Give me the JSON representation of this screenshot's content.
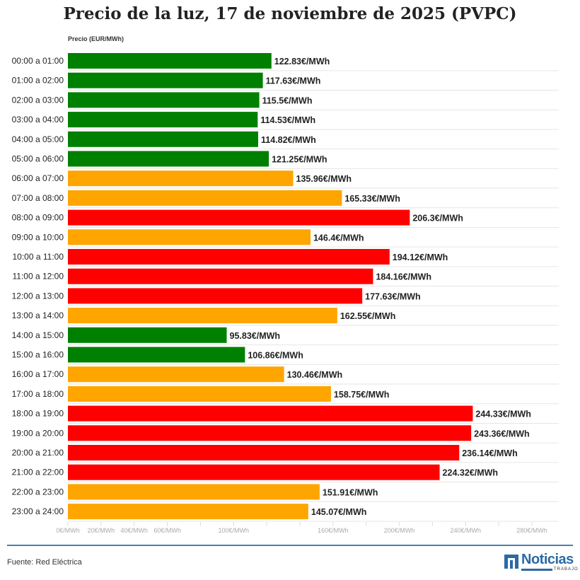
{
  "chart_data": {
    "type": "bar",
    "orientation": "horizontal",
    "title": "Precio de la luz, 17 de noviembre de 2025 (PVPC)",
    "ylabel": "Precio (EUR/MWh)",
    "categories": [
      "00:00 a 01:00",
      "01:00 a 02:00",
      "02:00 a 03:00",
      "03:00 a 04:00",
      "04:00 a 05:00",
      "05:00 a 06:00",
      "06:00 a 07:00",
      "07:00 a 08:00",
      "08:00 a 09:00",
      "09:00 a 10:00",
      "10:00 a 11:00",
      "11:00 a 12:00",
      "12:00 a 13:00",
      "13:00 a 14:00",
      "14:00 a 15:00",
      "15:00 a 16:00",
      "16:00 a 17:00",
      "17:00 a 18:00",
      "18:00 a 19:00",
      "19:00 a 20:00",
      "20:00 a 21:00",
      "21:00 a 22:00",
      "22:00 a 23:00",
      "23:00 a 24:00"
    ],
    "values": [
      122.83,
      117.63,
      115.5,
      114.53,
      114.82,
      121.25,
      135.96,
      165.33,
      206.3,
      146.4,
      194.12,
      184.16,
      177.63,
      162.55,
      95.83,
      106.86,
      130.46,
      158.75,
      244.33,
      243.36,
      236.14,
      224.32,
      151.91,
      145.07
    ],
    "data_labels": [
      "122.83€/MWh",
      "117.63€/MWh",
      "115.5€/MWh",
      "114.53€/MWh",
      "114.82€/MWh",
      "121.25€/MWh",
      "135.96€/MWh",
      "165.33€/MWh",
      "206.3€/MWh",
      "146.4€/MWh",
      "194.12€/MWh",
      "184.16€/MWh",
      "177.63€/MWh",
      "162.55€/MWh",
      "95.83€/MWh",
      "106.86€/MWh",
      "130.46€/MWh",
      "158.75€/MWh",
      "244.33€/MWh",
      "243.36€/MWh",
      "236.14€/MWh",
      "224.32€/MWh",
      "151.91€/MWh",
      "145.07€/MWh"
    ],
    "levels": [
      "low",
      "low",
      "low",
      "low",
      "low",
      "low",
      "mid",
      "mid",
      "high",
      "mid",
      "high",
      "high",
      "high",
      "mid",
      "low",
      "low",
      "mid",
      "mid",
      "high",
      "high",
      "high",
      "high",
      "mid",
      "mid"
    ],
    "colors": {
      "low": "#008000",
      "mid": "#FFA500",
      "high": "#FF0000"
    },
    "xlim": [
      0,
      280
    ],
    "x_ticks": [
      0,
      20,
      40,
      60,
      80,
      100,
      120,
      140,
      160,
      180,
      200,
      220,
      240,
      260,
      280
    ],
    "x_tick_labels": [
      {
        "value": 0,
        "label": "0€/MWh"
      },
      {
        "value": 20,
        "label": "20€/MWh"
      },
      {
        "value": 40,
        "label": "40€/MWh"
      },
      {
        "value": 60,
        "label": "60€/MWh"
      },
      {
        "value": 100,
        "label": "100€/MWh"
      },
      {
        "value": 160,
        "label": "160€/MWh"
      },
      {
        "value": 200,
        "label": "200€/MWh"
      },
      {
        "value": 240,
        "label": "240€/MWh"
      },
      {
        "value": 280,
        "label": "280€/MWh"
      }
    ],
    "grid": true
  },
  "footer": {
    "source": "Fuente: Red Eléctrica"
  },
  "logo": {
    "word": "Noticias",
    "sub": "TRABAJO"
  }
}
